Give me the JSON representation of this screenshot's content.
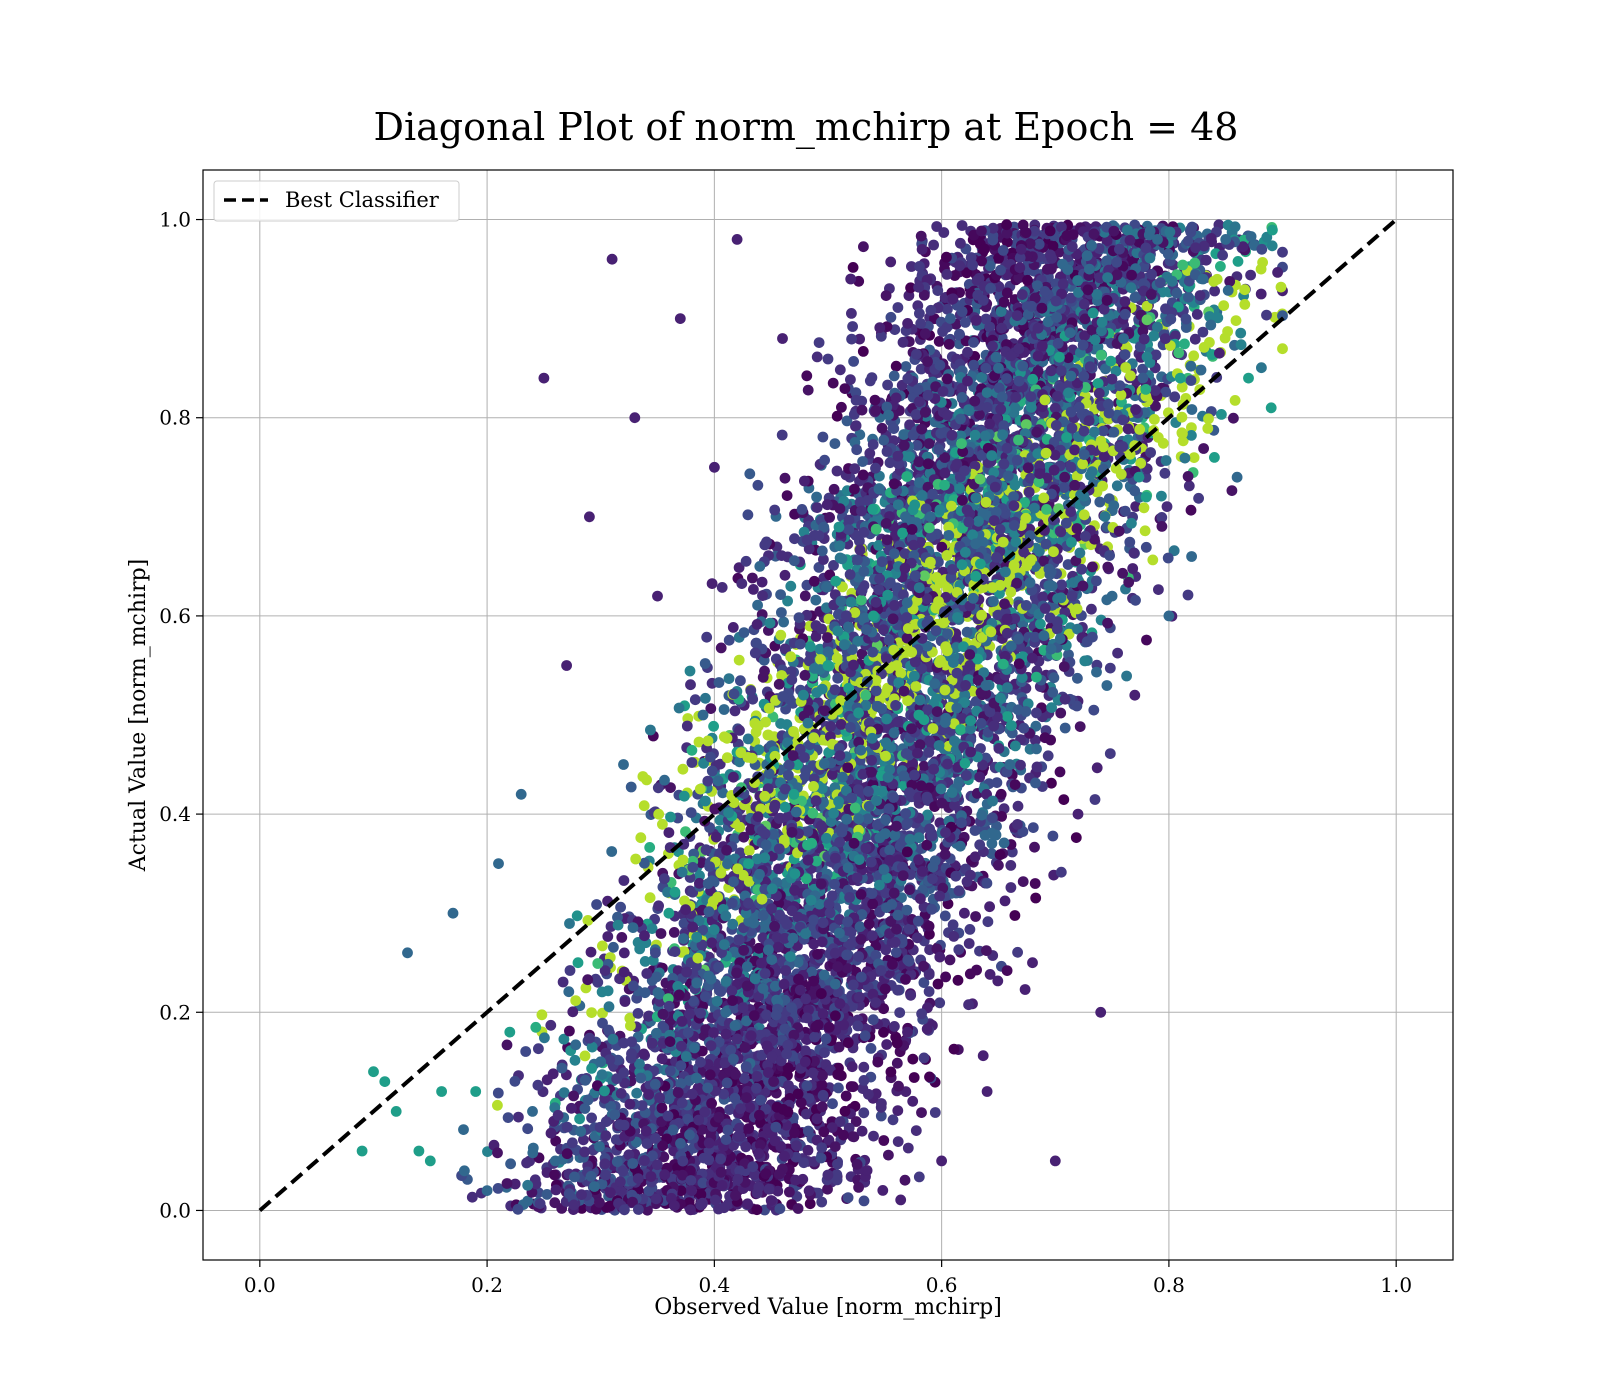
{
  "chart_data": {
    "type": "scatter",
    "title": "Diagonal Plot of norm_mchirp at Epoch = 48",
    "xlabel": "Observed Value [norm_mchirp]",
    "ylabel": "Actual Value [norm_mchirp]",
    "xlim": [
      -0.05,
      1.05
    ],
    "ylim": [
      -0.05,
      1.05
    ],
    "xticks": [
      "0.0",
      "0.2",
      "0.4",
      "0.6",
      "0.8",
      "1.0"
    ],
    "yticks": [
      "0.0",
      "0.2",
      "0.4",
      "0.6",
      "0.8",
      "1.0"
    ],
    "xtick_values": [
      0.0,
      0.2,
      0.4,
      0.6,
      0.8,
      1.0
    ],
    "ytick_values": [
      0.0,
      0.2,
      0.4,
      0.6,
      0.8,
      1.0
    ],
    "grid": true,
    "legend": {
      "placement": "upper-left",
      "entries": [
        "Best Classifier"
      ]
    },
    "colormap": "viridis",
    "reference_line": {
      "name": "Best Classifier",
      "x": [
        0.0,
        1.0
      ],
      "y": [
        0.0,
        1.0
      ],
      "style": "dashed",
      "color": "#000000"
    },
    "scatter_points": [
      [
        0.09,
        0.06
      ],
      [
        0.1,
        0.14
      ],
      [
        0.11,
        0.13
      ],
      [
        0.12,
        0.1
      ],
      [
        0.13,
        0.26
      ],
      [
        0.14,
        0.06
      ],
      [
        0.15,
        0.05
      ],
      [
        0.16,
        0.12
      ],
      [
        0.17,
        0.3
      ],
      [
        0.18,
        0.04
      ],
      [
        0.19,
        0.12
      ],
      [
        0.2,
        0.02
      ],
      [
        0.21,
        0.35
      ],
      [
        0.22,
        0.18
      ],
      [
        0.23,
        0.42
      ],
      [
        0.24,
        0.1
      ],
      [
        0.25,
        0.84
      ],
      [
        0.26,
        0.05
      ],
      [
        0.27,
        0.55
      ],
      [
        0.28,
        0.25
      ],
      [
        0.29,
        0.7
      ],
      [
        0.3,
        0.15
      ],
      [
        0.31,
        0.96
      ],
      [
        0.32,
        0.45
      ],
      [
        0.33,
        0.8
      ],
      [
        0.34,
        0.08
      ],
      [
        0.35,
        0.62
      ],
      [
        0.36,
        0.3
      ],
      [
        0.37,
        0.9
      ],
      [
        0.38,
        0.02
      ],
      [
        0.39,
        0.5
      ],
      [
        0.4,
        0.75
      ],
      [
        0.41,
        0.2
      ],
      [
        0.42,
        0.98
      ],
      [
        0.43,
        0.35
      ],
      [
        0.44,
        0.65
      ],
      [
        0.45,
        0.01
      ],
      [
        0.46,
        0.88
      ],
      [
        0.47,
        0.42
      ],
      [
        0.48,
        0.15
      ],
      [
        0.49,
        0.72
      ],
      [
        0.5,
        0.55
      ],
      [
        0.51,
        0.28
      ],
      [
        0.52,
        0.94
      ],
      [
        0.53,
        0.08
      ],
      [
        0.54,
        0.6
      ],
      [
        0.55,
        0.38
      ],
      [
        0.56,
        0.82
      ],
      [
        0.57,
        0.18
      ],
      [
        0.58,
        0.5
      ],
      [
        0.59,
        0.7
      ],
      [
        0.6,
        0.05
      ],
      [
        0.61,
        0.92
      ],
      [
        0.62,
        0.3
      ],
      [
        0.63,
        0.64
      ],
      [
        0.64,
        0.12
      ],
      [
        0.65,
        0.85
      ],
      [
        0.66,
        0.45
      ],
      [
        0.67,
        0.97
      ],
      [
        0.68,
        0.25
      ],
      [
        0.69,
        0.58
      ],
      [
        0.7,
        0.05
      ],
      [
        0.71,
        0.78
      ],
      [
        0.72,
        0.4
      ],
      [
        0.73,
        0.95
      ],
      [
        0.74,
        0.2
      ],
      [
        0.75,
        0.62
      ],
      [
        0.76,
        0.88
      ],
      [
        0.77,
        0.52
      ],
      [
        0.78,
        0.72
      ],
      [
        0.79,
        0.98
      ],
      [
        0.8,
        0.6
      ],
      [
        0.81,
        0.84
      ],
      [
        0.82,
        0.66
      ],
      [
        0.83,
        0.94
      ],
      [
        0.84,
        0.76
      ],
      [
        0.85,
        0.98
      ],
      [
        0.86,
        0.74
      ],
      [
        0.87,
        0.84
      ],
      [
        0.89,
        0.81
      ]
    ]
  }
}
